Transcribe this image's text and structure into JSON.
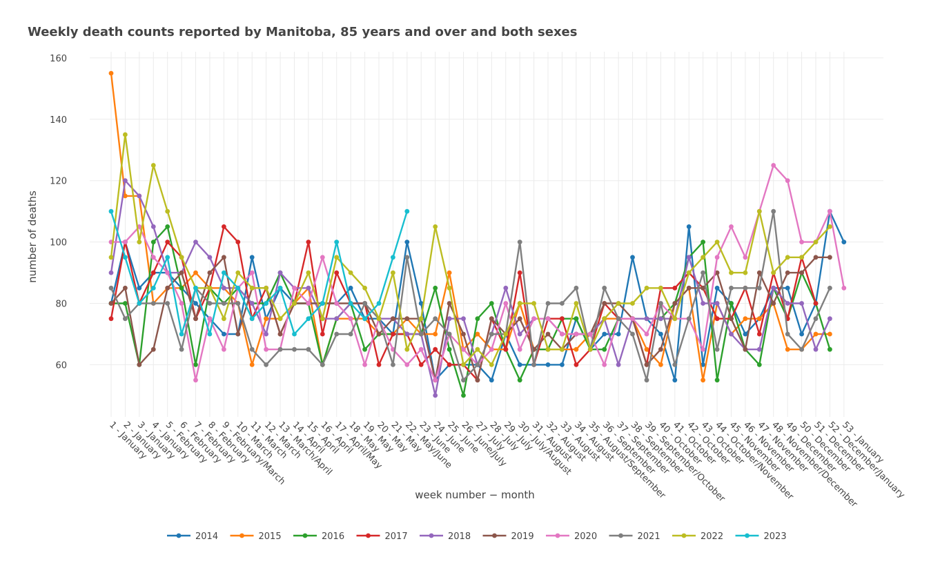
{
  "chart_data": {
    "type": "line",
    "title": "Weekly death counts reported by Manitoba, 85 years and over and both sexes",
    "xlabel": "week number − month",
    "ylabel": "number of deaths",
    "ylim": [
      43,
      162
    ],
    "yticks": [
      60,
      80,
      100,
      120,
      140,
      160
    ],
    "grid": true,
    "legend_position": "bottom",
    "categories": [
      "1 - January",
      "2 - January",
      "3 - January",
      "4 - January",
      "5 - February",
      "6 - February",
      "7 - February",
      "8 - February",
      "9 - February/March",
      "10 - March",
      "11 - March",
      "12 - March",
      "13 - March/April",
      "14 - April",
      "15 - April",
      "16 - April",
      "17 - April/May",
      "18 - May",
      "19 - May",
      "20 - May",
      "21 - May",
      "22 - May/June",
      "23 - June",
      "24 - June",
      "25 - June",
      "26 - June/July",
      "27 - July",
      "28 - July",
      "29 - July",
      "30 - July/August",
      "31 - August",
      "32 - August",
      "33 - August",
      "34 - August",
      "35 - August/September",
      "36 - September",
      "37 - September",
      "38 - September",
      "39 - September/October",
      "40 - October",
      "41 - October",
      "42 - October",
      "43 - October",
      "44 - October/November",
      "45 - November",
      "46 - November",
      "47 - November",
      "48 - November/December",
      "49 - December",
      "50 - December",
      "51 - December",
      "52 - December/January",
      "53 - January"
    ],
    "series": [
      {
        "name": "2014",
        "color": "#1f77b4",
        "values": [
          80,
          100,
          85,
          90,
          90,
          85,
          80,
          75,
          70,
          70,
          95,
          75,
          85,
          80,
          80,
          80,
          80,
          85,
          75,
          75,
          70,
          100,
          80,
          55,
          60,
          60,
          60,
          55,
          70,
          60,
          60,
          60,
          60,
          75,
          65,
          70,
          70,
          95,
          75,
          70,
          55,
          105,
          60,
          85,
          80,
          70,
          75,
          85,
          85,
          70,
          80,
          110,
          100
        ]
      },
      {
        "name": "2015",
        "color": "#ff7f0e",
        "values": [
          155,
          115,
          115,
          80,
          85,
          85,
          90,
          85,
          85,
          80,
          60,
          75,
          75,
          80,
          85,
          60,
          75,
          75,
          75,
          70,
          70,
          75,
          70,
          70,
          90,
          65,
          70,
          65,
          65,
          80,
          65,
          65,
          65,
          65,
          70,
          75,
          75,
          75,
          65,
          60,
          80,
          85,
          55,
          80,
          70,
          75,
          75,
          80,
          65,
          65,
          70,
          70,
          null
        ]
      },
      {
        "name": "2016",
        "color": "#2ca02c",
        "values": [
          80,
          80,
          60,
          100,
          105,
          85,
          60,
          85,
          80,
          85,
          80,
          80,
          90,
          80,
          80,
          60,
          75,
          80,
          65,
          70,
          70,
          70,
          70,
          85,
          65,
          50,
          75,
          80,
          65,
          55,
          65,
          65,
          75,
          75,
          65,
          65,
          75,
          75,
          75,
          75,
          80,
          95,
          100,
          55,
          80,
          65,
          60,
          85,
          75,
          90,
          80,
          65,
          null
        ]
      },
      {
        "name": "2017",
        "color": "#d62728",
        "values": [
          75,
          100,
          80,
          90,
          100,
          95,
          75,
          85,
          105,
          100,
          75,
          85,
          70,
          80,
          100,
          70,
          90,
          80,
          80,
          60,
          70,
          70,
          60,
          65,
          60,
          60,
          55,
          75,
          65,
          90,
          60,
          75,
          75,
          60,
          65,
          80,
          75,
          75,
          60,
          85,
          85,
          90,
          85,
          75,
          75,
          85,
          70,
          90,
          75,
          95,
          80,
          null,
          null
        ]
      },
      {
        "name": "2018",
        "color": "#9467bd",
        "values": [
          90,
          120,
          115,
          105,
          90,
          90,
          100,
          95,
          85,
          85,
          80,
          70,
          90,
          85,
          85,
          75,
          75,
          80,
          80,
          75,
          75,
          70,
          70,
          50,
          75,
          75,
          60,
          70,
          85,
          70,
          75,
          75,
          70,
          70,
          70,
          75,
          60,
          75,
          75,
          75,
          75,
          95,
          80,
          80,
          70,
          65,
          65,
          85,
          80,
          80,
          65,
          75,
          null
        ]
      },
      {
        "name": "2019",
        "color": "#8c564b",
        "values": [
          80,
          85,
          60,
          65,
          85,
          90,
          75,
          90,
          95,
          70,
          85,
          85,
          70,
          80,
          80,
          80,
          80,
          80,
          80,
          70,
          75,
          75,
          75,
          55,
          80,
          70,
          55,
          75,
          70,
          75,
          65,
          70,
          65,
          70,
          70,
          80,
          80,
          75,
          60,
          65,
          80,
          85,
          85,
          90,
          75,
          65,
          90,
          80,
          90,
          90,
          95,
          95,
          null
        ]
      },
      {
        "name": "2020",
        "color": "#e377c2",
        "values": [
          100,
          100,
          105,
          95,
          90,
          80,
          55,
          75,
          65,
          85,
          90,
          65,
          65,
          85,
          80,
          95,
          80,
          75,
          60,
          75,
          65,
          60,
          65,
          55,
          70,
          65,
          60,
          65,
          80,
          65,
          75,
          75,
          70,
          70,
          70,
          60,
          75,
          75,
          70,
          80,
          75,
          75,
          65,
          95,
          105,
          95,
          110,
          125,
          120,
          100,
          100,
          110,
          85
        ]
      },
      {
        "name": "2021",
        "color": "#7f7f7f",
        "values": [
          85,
          75,
          80,
          80,
          80,
          65,
          85,
          80,
          80,
          80,
          65,
          60,
          65,
          65,
          65,
          60,
          70,
          70,
          80,
          75,
          60,
          95,
          70,
          75,
          70,
          55,
          60,
          70,
          70,
          100,
          60,
          80,
          80,
          85,
          65,
          85,
          75,
          70,
          55,
          80,
          60,
          75,
          90,
          65,
          85,
          85,
          85,
          110,
          70,
          65,
          75,
          85,
          null
        ]
      },
      {
        "name": "2022",
        "color": "#bcbd22",
        "values": [
          95,
          135,
          100,
          125,
          110,
          95,
          85,
          85,
          75,
          90,
          85,
          85,
          75,
          80,
          90,
          75,
          95,
          90,
          85,
          75,
          90,
          65,
          75,
          105,
          85,
          60,
          65,
          60,
          70,
          80,
          80,
          65,
          65,
          80,
          65,
          75,
          80,
          80,
          85,
          85,
          75,
          90,
          95,
          100,
          90,
          90,
          110,
          90,
          95,
          95,
          100,
          105,
          null
        ]
      },
      {
        "name": "2023",
        "color": "#17becf",
        "values": [
          110,
          95,
          80,
          85,
          95,
          70,
          85,
          70,
          90,
          85,
          75,
          80,
          85,
          70,
          75,
          80,
          100,
          80,
          75,
          80,
          95,
          110,
          null,
          null,
          null,
          null,
          null,
          null,
          null,
          null,
          null,
          null,
          null,
          null,
          null,
          null,
          null,
          null,
          null,
          null,
          null,
          null,
          null,
          null,
          null,
          null,
          null,
          null,
          null,
          null,
          null,
          null,
          null
        ]
      }
    ]
  }
}
